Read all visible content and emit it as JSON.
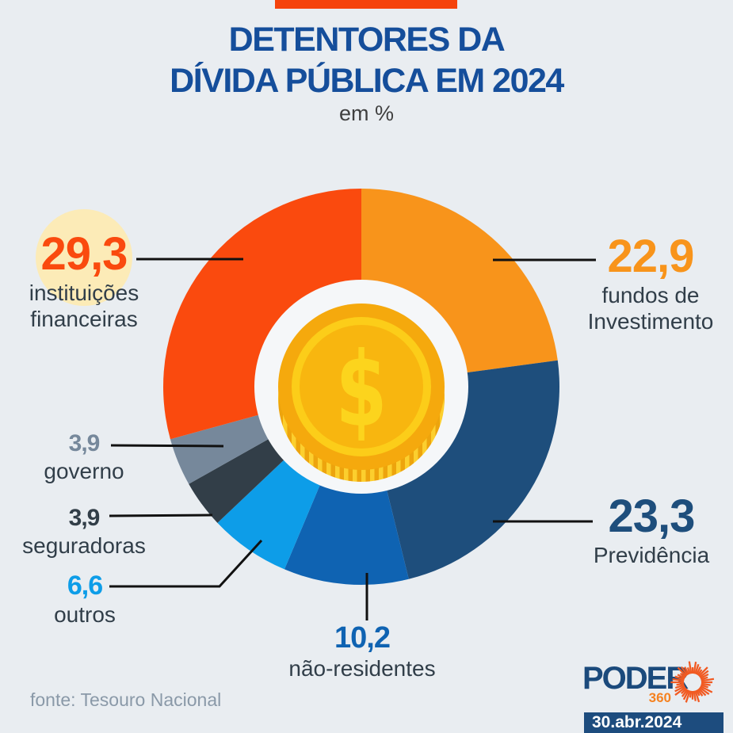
{
  "header": {
    "accent_color": "#F5430C",
    "title_line1": "DETENTORES DA",
    "title_line2": "DÍVIDA PÚBLICA EM 2024",
    "title_color": "#154E9B",
    "subtitle": "em %"
  },
  "chart_data": {
    "type": "pie",
    "title": "Detentores da dívida pública em 2024",
    "unit": "%",
    "start_angle_deg": 0,
    "direction": "clockwise",
    "hole_color": "#F5F7F9",
    "callout_line_color": "#111111",
    "highlight_circle_color": "#FCEBB7",
    "segments": [
      {
        "label": "fundos de Investimento",
        "label_lines": [
          "fundos de",
          "Investimento"
        ],
        "value": 22.9,
        "display": "22,9",
        "color": "#F8941B",
        "value_color": "#F8941B"
      },
      {
        "label": "Previdência",
        "label_lines": [
          "Previdência"
        ],
        "value": 23.3,
        "display": "23,3",
        "color": "#1E4E7C",
        "value_color": "#1E4E7C"
      },
      {
        "label": "não-residentes",
        "label_lines": [
          "não-residentes"
        ],
        "value": 10.2,
        "display": "10,2",
        "color": "#0F63B2",
        "value_color": "#0F63B2"
      },
      {
        "label": "outros",
        "label_lines": [
          "outros"
        ],
        "value": 6.6,
        "display": "6,6",
        "color": "#0D9DE8",
        "value_color": "#0D9DE8"
      },
      {
        "label": "seguradoras",
        "label_lines": [
          "seguradoras"
        ],
        "value": 3.9,
        "display": "3,9",
        "color": "#323E48",
        "value_color": "#323E48"
      },
      {
        "label": "governo",
        "label_lines": [
          "governo"
        ],
        "value": 3.9,
        "display": "3,9",
        "color": "#76889B",
        "value_color": "#76889B"
      },
      {
        "label": "instituições financeiras",
        "label_lines": [
          "instituições",
          "financeiras"
        ],
        "value": 29.3,
        "display": "29,3",
        "color": "#FA4A0E",
        "value_color": "#FA4A0E"
      }
    ],
    "center_icon": {
      "name": "dollar-coin-icon",
      "symbol": "$",
      "rim": "#F5A90D",
      "ring": "#FCCD19",
      "body": "#F8B60F",
      "symbol_color": "#FCD41D",
      "edge_dark": "#EDA40D",
      "edge_light": "#FCCF2E"
    }
  },
  "footer": {
    "source": "fonte: Tesouro Nacional",
    "source_color": "#8A99A8",
    "date": "30.abr.2024",
    "badge_color": "#1D4C7E"
  },
  "logo": {
    "wordmark": "PODER",
    "wordmark_color": "#1B4A7C",
    "sub": "360",
    "sub_color": "#F58220",
    "burst_color": "#F15A22"
  }
}
